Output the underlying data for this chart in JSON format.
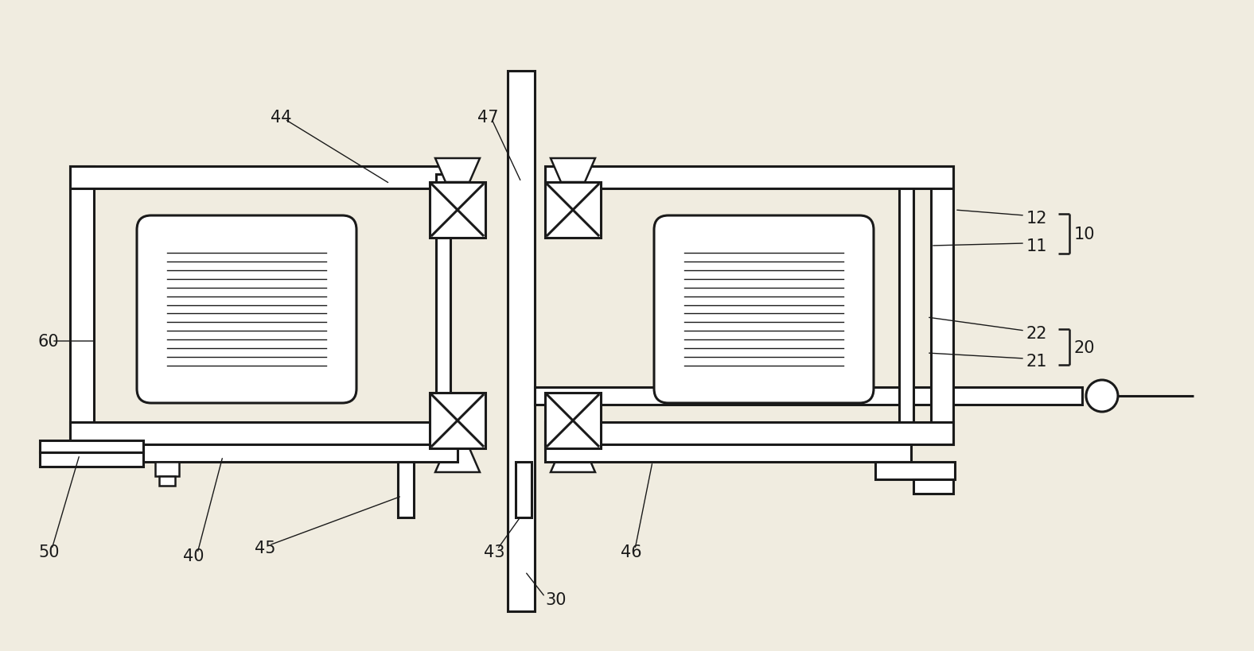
{
  "bg_color": "#f0ece0",
  "line_color": "#1a1a1a",
  "lw": 1.8,
  "lw_thin": 1.0,
  "lw_thick": 2.2
}
